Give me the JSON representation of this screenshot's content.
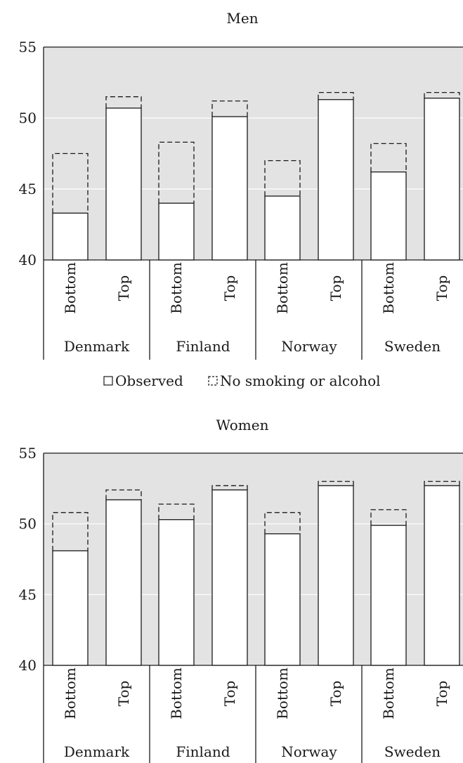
{
  "chart_data": [
    {
      "type": "bar",
      "title": "Men",
      "ylim": [
        40,
        55
      ],
      "yticks": [
        "40",
        "45",
        "50",
        "55"
      ],
      "groups": [
        "Denmark",
        "Finland",
        "Norway",
        "Sweden"
      ],
      "subcategories": [
        "Bottom",
        "Top"
      ],
      "series": [
        {
          "name": "Observed",
          "values": [
            43.3,
            50.7,
            44.0,
            50.1,
            44.5,
            51.3,
            46.2,
            51.4
          ]
        },
        {
          "name": "No smoking or alcohol",
          "values": [
            47.5,
            51.5,
            48.3,
            51.2,
            47.0,
            51.8,
            48.2,
            51.8
          ]
        }
      ],
      "grid": true,
      "legend": "bottom"
    },
    {
      "type": "bar",
      "title": "Women",
      "ylim": [
        40,
        55
      ],
      "yticks": [
        "40",
        "45",
        "50",
        "55"
      ],
      "groups": [
        "Denmark",
        "Finland",
        "Norway",
        "Sweden"
      ],
      "subcategories": [
        "Bottom",
        "Top"
      ],
      "series": [
        {
          "name": "Observed",
          "values": [
            48.1,
            51.7,
            50.3,
            52.4,
            49.3,
            52.7,
            49.9,
            52.7
          ]
        },
        {
          "name": "No smoking or alcohol",
          "values": [
            50.8,
            52.4,
            51.4,
            52.7,
            50.8,
            53.0,
            51.0,
            53.0
          ]
        }
      ],
      "grid": true,
      "legend": "none"
    }
  ],
  "legend": {
    "observed_label": "Observed",
    "counterfactual_label": "No smoking or alcohol"
  }
}
